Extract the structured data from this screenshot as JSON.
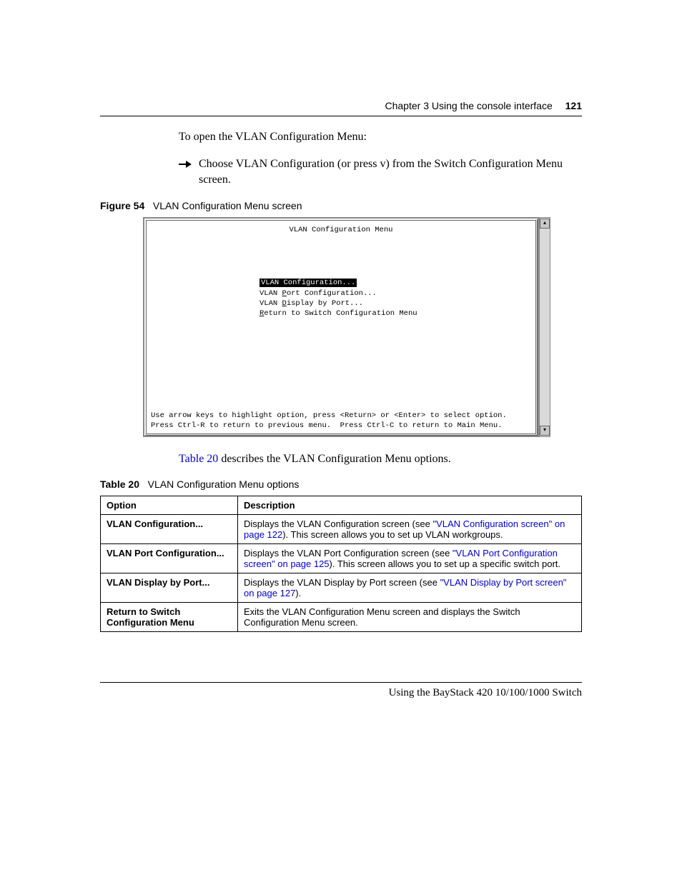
{
  "header": {
    "chapter": "Chapter 3  Using the console interface",
    "page": "121"
  },
  "intro": "To open the VLAN Configuration Menu:",
  "bullet": "Choose VLAN Configuration (or press v) from the Switch Configuration Menu screen.",
  "figure": {
    "label": "Figure 54",
    "title": "VLAN Configuration Menu screen"
  },
  "console": {
    "title": "VLAN Configuration Menu",
    "items": [
      {
        "pre": "VLAN ",
        "hot": "C",
        "post": "onfiguration...",
        "selected": true
      },
      {
        "pre": "VLAN ",
        "hot": "P",
        "post": "ort Configuration...",
        "selected": false
      },
      {
        "pre": "VLAN ",
        "hot": "D",
        "post": "isplay by Port...",
        "selected": false
      },
      {
        "pre": "",
        "hot": "R",
        "post": "eturn to Switch Configuration Menu",
        "selected": false
      }
    ],
    "help1": "Use arrow keys to highlight option, press <Return> or <Enter> to select option.",
    "help2": "Press Ctrl-R to return to previous menu.  Press Ctrl-C to return to Main Menu."
  },
  "table_intro": {
    "link": "Table 20",
    "rest": " describes the VLAN Configuration Menu options."
  },
  "table_caption": {
    "label": "Table 20",
    "title": "VLAN Configuration Menu options"
  },
  "table": {
    "headers": [
      "Option",
      "Description"
    ],
    "rows": [
      {
        "option": "VLAN Configuration...",
        "desc_parts": [
          {
            "t": "Displays the VLAN Configuration screen (see "
          },
          {
            "t": "\"VLAN Configuration screen\" on page 122",
            "link": true
          },
          {
            "t": "). This screen allows you to set up VLAN workgroups."
          }
        ]
      },
      {
        "option": "VLAN Port Configuration...",
        "desc_parts": [
          {
            "t": "Displays the VLAN Port Configuration screen (see "
          },
          {
            "t": "\"VLAN Port Configuration screen\" on page 125",
            "link": true
          },
          {
            "t": "). This screen allows you to set up a specific switch port."
          }
        ]
      },
      {
        "option": "VLAN Display by Port...",
        "desc_parts": [
          {
            "t": "Displays the VLAN Display by Port screen (see "
          },
          {
            "t": "\"VLAN Display by Port screen\" on page 127",
            "link": true
          },
          {
            "t": ")."
          }
        ]
      },
      {
        "option": "Return to Switch Configuration Menu",
        "desc_parts": [
          {
            "t": "Exits the VLAN Configuration Menu screen and displays the Switch Configuration Menu screen."
          }
        ]
      }
    ]
  },
  "footer": "Using the BayStack 420 10/100/1000 Switch"
}
